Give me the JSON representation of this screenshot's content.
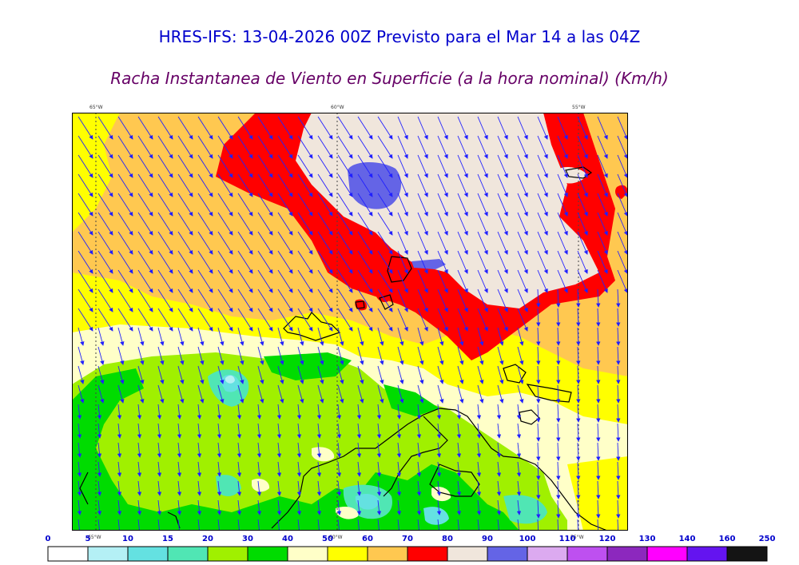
{
  "header": {
    "title": "HRES-IFS: 13-04-2026 00Z Previsto para el Mar 14 a las 04Z",
    "subtitle": "Racha Instantanea de Viento en Superficie (a la hora nominal) (Km/h)"
  },
  "map": {
    "longitude_labels": [
      "65°W",
      "60°W",
      "55°W"
    ],
    "bottom_longitude_labels": [
      "65°W",
      "60°W",
      "55°W"
    ]
  },
  "legend": {
    "levels": [
      "0",
      "5",
      "10",
      "15",
      "20",
      "30",
      "40",
      "50",
      "60",
      "70",
      "80",
      "90",
      "100",
      "110",
      "120",
      "130",
      "140",
      "160",
      "250"
    ],
    "colors": [
      "#ffffff",
      "#b4f0f5",
      "#64e1e1",
      "#50e6b4",
      "#a0f000",
      "#00dc00",
      "#ffffc8",
      "#ffff00",
      "#ffc850",
      "#ff0000",
      "#f0e6dc",
      "#6464e6",
      "#dcaaf0",
      "#be50f0",
      "#8c28be",
      "#ff00ff",
      "#6414f0",
      "#141414"
    ]
  }
}
